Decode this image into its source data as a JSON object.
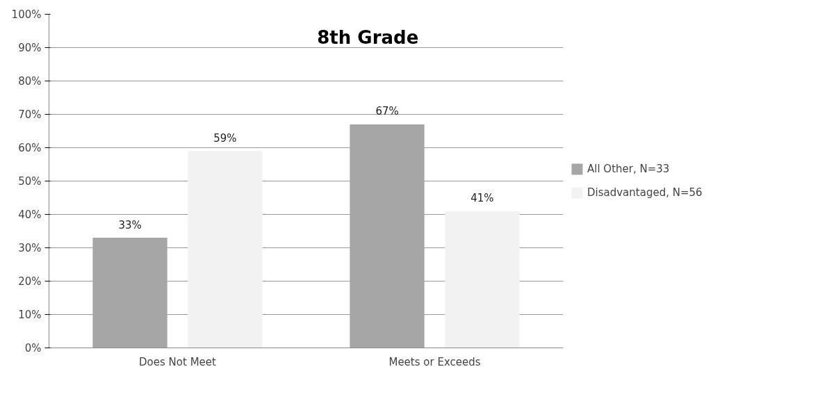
{
  "chart_data": {
    "type": "bar",
    "title": "8th Grade",
    "categories": [
      "Does Not Meet",
      "Meets or Exceeds"
    ],
    "series": [
      {
        "name": "All Other, N=33",
        "color": "#a6a6a6",
        "values": [
          33,
          67
        ],
        "value_labels": [
          "33%",
          "67%"
        ]
      },
      {
        "name": "Disadvantaged, N=56",
        "color": "#f2f2f2",
        "values": [
          59,
          41
        ],
        "value_labels": [
          "59%",
          "41%"
        ]
      }
    ],
    "ylim": [
      0,
      100
    ],
    "yticks": [
      {
        "value": 0,
        "label": "0%"
      },
      {
        "value": 10,
        "label": "10%"
      },
      {
        "value": 20,
        "label": "20%"
      },
      {
        "value": 30,
        "label": "30%"
      },
      {
        "value": 40,
        "label": "40%"
      },
      {
        "value": 50,
        "label": "50%"
      },
      {
        "value": 60,
        "label": "60%"
      },
      {
        "value": 70,
        "label": "70%"
      },
      {
        "value": 80,
        "label": "80%"
      },
      {
        "value": 90,
        "label": "90%"
      },
      {
        "value": 100,
        "label": "100%"
      }
    ],
    "grid": "y",
    "legend": "right"
  }
}
